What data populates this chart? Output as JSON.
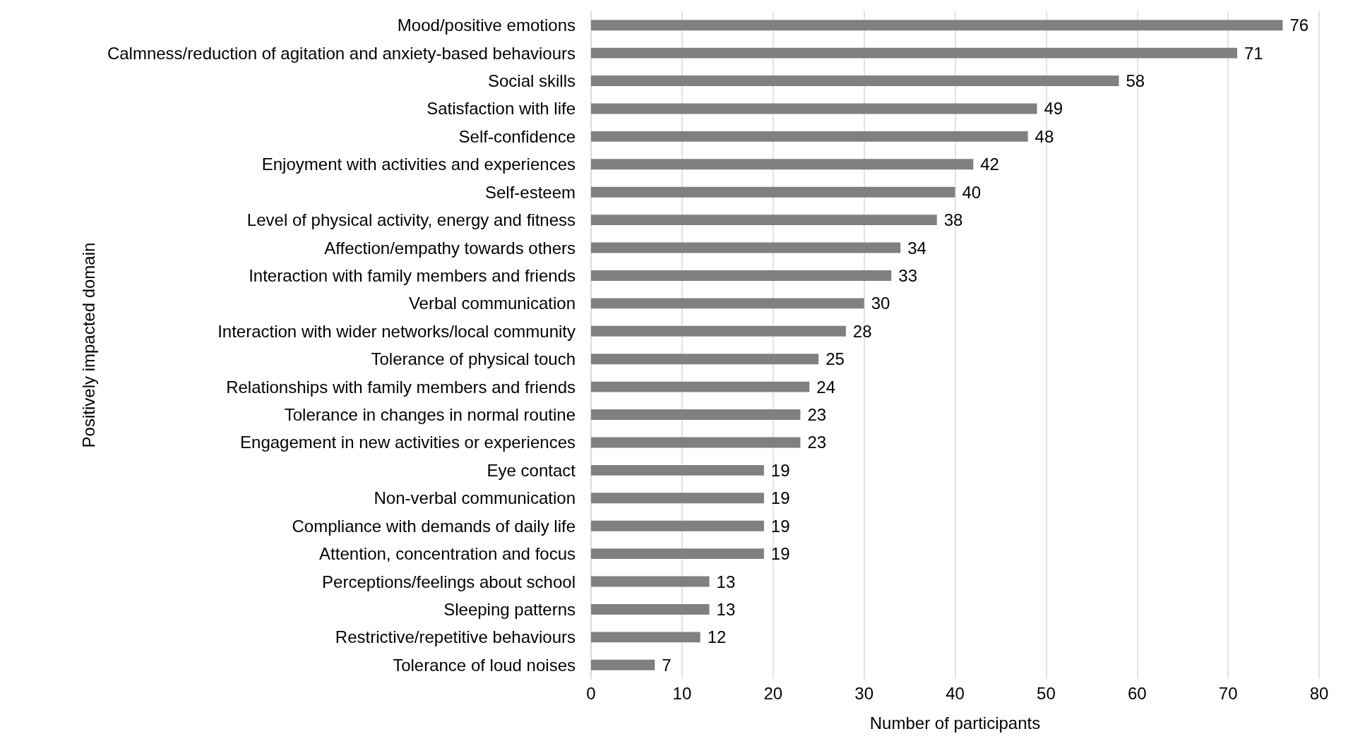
{
  "chart_data": {
    "type": "bar",
    "orientation": "horizontal",
    "xlabel": "Number of participants",
    "ylabel": "Positively impacted domain",
    "categories": [
      "Mood/positive emotions",
      "Calmness/reduction of agitation and anxiety-based behaviours",
      "Social skills",
      "Satisfaction with life",
      "Self-confidence",
      "Enjoyment with activities and experiences",
      "Self-esteem",
      "Level of physical activity, energy and fitness",
      "Affection/empathy towards others",
      "Interaction with family members and friends",
      "Verbal communication",
      "Interaction with wider networks/local community",
      "Tolerance of physical touch",
      "Relationships with family members and friends",
      "Tolerance in changes in normal routine",
      "Engagement in new activities or experiences",
      "Eye contact",
      "Non-verbal communication",
      "Compliance with demands of daily life",
      "Attention, concentration and focus",
      "Perceptions/feelings about school",
      "Sleeping patterns",
      "Restrictive/repetitive behaviours",
      "Tolerance of loud noises"
    ],
    "values": [
      76,
      71,
      58,
      49,
      48,
      42,
      40,
      38,
      34,
      33,
      30,
      28,
      25,
      24,
      23,
      23,
      19,
      19,
      19,
      19,
      13,
      13,
      12,
      7
    ],
    "color": "#808080",
    "data_labels": true,
    "xlim": [
      0,
      80
    ],
    "xticks": [
      0,
      10,
      20,
      30,
      40,
      50,
      60,
      70,
      80
    ],
    "grid": "x"
  }
}
